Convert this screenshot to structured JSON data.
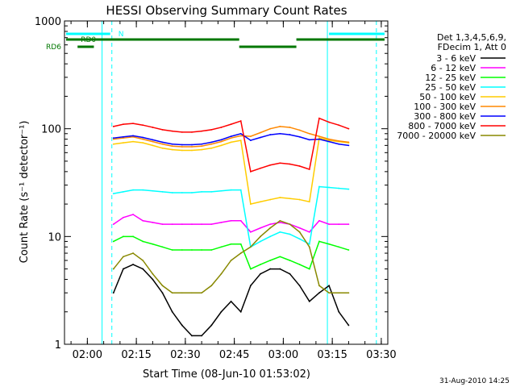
{
  "chart_data": {
    "type": "line",
    "title": "HESSI Observing Summary Count Rates",
    "xlabel": "Start Time (08-Jun-10 01:53:02)",
    "ylabel": "Count Rate (s⁻¹ detector⁻¹)",
    "y_scale": "log",
    "ylim": [
      1,
      1000
    ],
    "x_unit": "minutes since 01:53:02",
    "xlim": [
      0,
      99
    ],
    "x_ticks": [
      {
        "v": 7,
        "label": "02:00"
      },
      {
        "v": 22,
        "label": "02:15"
      },
      {
        "v": 37,
        "label": "02:30"
      },
      {
        "v": 52,
        "label": "02:45"
      },
      {
        "v": 67,
        "label": "03:00"
      },
      {
        "v": 82,
        "label": "03:15"
      },
      {
        "v": 97,
        "label": "03:30"
      }
    ],
    "y_ticks": [
      {
        "v": 1,
        "label": "1"
      },
      {
        "v": 10,
        "label": "10"
      },
      {
        "v": 100,
        "label": "100"
      },
      {
        "v": 1000,
        "label": "1000"
      }
    ],
    "legend_header": [
      "Det 1,3,4,5,6,9,",
      "FDecim 1, Att 0"
    ],
    "legend_placement": "right",
    "series": [
      {
        "name": "3 - 6 keV",
        "color": "#000000",
        "x": [
          15,
          18,
          21,
          24,
          27,
          30,
          33,
          36,
          39,
          42,
          45,
          48,
          51,
          54,
          57,
          60,
          63,
          66,
          69,
          72,
          75,
          78,
          81,
          84,
          87
        ],
        "values": [
          3,
          5,
          5.5,
          5,
          4,
          3,
          2,
          1.5,
          1.2,
          1.2,
          1.5,
          2,
          2.5,
          2,
          3.5,
          4.5,
          5,
          5,
          4.5,
          3.5,
          2.5,
          3,
          3.5,
          2,
          1.5
        ]
      },
      {
        "name": "6 - 12 keV",
        "color": "#ff00ff",
        "x": [
          15,
          18,
          21,
          24,
          27,
          30,
          33,
          36,
          39,
          42,
          45,
          48,
          51,
          54,
          57,
          60,
          63,
          66,
          69,
          72,
          75,
          78,
          81,
          84,
          87
        ],
        "values": [
          13,
          15,
          16,
          14,
          13.5,
          13,
          13,
          13,
          13,
          13,
          13,
          13.5,
          14,
          14,
          11,
          12,
          13,
          13.5,
          13,
          12,
          11,
          14,
          13,
          13,
          13
        ]
      },
      {
        "name": "12 - 25 keV",
        "color": "#00ff00",
        "x": [
          15,
          18,
          21,
          24,
          27,
          30,
          33,
          36,
          39,
          42,
          45,
          48,
          51,
          54,
          57,
          60,
          63,
          66,
          69,
          72,
          75,
          78,
          81,
          84,
          87
        ],
        "values": [
          9,
          10,
          10,
          9,
          8.5,
          8,
          7.5,
          7.5,
          7.5,
          7.5,
          7.5,
          8,
          8.5,
          8.5,
          5,
          5.5,
          6,
          6.5,
          6,
          5.5,
          5,
          9,
          8.5,
          8,
          7.5
        ]
      },
      {
        "name": "25 - 50 keV",
        "color": "#00ffff",
        "x": [
          15,
          18,
          21,
          24,
          27,
          30,
          33,
          36,
          39,
          42,
          45,
          48,
          51,
          54,
          57,
          60,
          63,
          66,
          69,
          72,
          75,
          78,
          81,
          84,
          87
        ],
        "values": [
          25,
          26,
          27,
          27,
          26.5,
          26,
          25.5,
          25.5,
          25.5,
          26,
          26,
          26.5,
          27,
          27,
          8,
          9,
          10,
          11,
          10.5,
          9.5,
          8.5,
          29,
          28.5,
          28,
          27.5
        ]
      },
      {
        "name": "50 - 100 keV",
        "color": "#ffcc00",
        "x": [
          15,
          18,
          21,
          24,
          27,
          30,
          33,
          36,
          39,
          42,
          45,
          48,
          51,
          54,
          57,
          60,
          63,
          66,
          69,
          72,
          75,
          78,
          81,
          84,
          87
        ],
        "values": [
          72,
          74,
          76,
          74,
          70,
          66,
          64,
          63,
          63,
          64,
          66,
          70,
          75,
          78,
          20,
          21,
          22,
          23,
          22.5,
          22,
          21,
          82,
          78,
          76,
          74
        ]
      },
      {
        "name": "100 - 300 keV",
        "color": "#ff8800",
        "x": [
          15,
          18,
          21,
          24,
          27,
          30,
          33,
          36,
          39,
          42,
          45,
          48,
          51,
          54,
          57,
          60,
          63,
          66,
          69,
          72,
          75,
          78,
          81,
          84,
          87
        ],
        "values": [
          80,
          82,
          84,
          80,
          76,
          72,
          69,
          68,
          68,
          69,
          72,
          76,
          82,
          86,
          85,
          92,
          100,
          105,
          103,
          97,
          90,
          85,
          80,
          77,
          75
        ]
      },
      {
        "name": "300 - 800 keV",
        "color": "#0000ff",
        "x": [
          15,
          18,
          21,
          24,
          27,
          30,
          33,
          36,
          39,
          42,
          45,
          48,
          51,
          54,
          57,
          60,
          63,
          66,
          69,
          72,
          75,
          78,
          81,
          84,
          87
        ],
        "values": [
          82,
          84,
          86,
          83,
          79,
          75,
          72,
          71,
          71,
          72,
          75,
          79,
          85,
          90,
          78,
          83,
          88,
          90,
          88,
          84,
          79,
          80,
          76,
          72,
          70
        ]
      },
      {
        "name": "800 - 7000 keV",
        "color": "#ff0000",
        "x": [
          15,
          18,
          21,
          24,
          27,
          30,
          33,
          36,
          39,
          42,
          45,
          48,
          51,
          54,
          57,
          60,
          63,
          66,
          69,
          72,
          75,
          78,
          81,
          84,
          87
        ],
        "values": [
          105,
          110,
          112,
          108,
          103,
          98,
          95,
          93,
          93,
          95,
          98,
          103,
          110,
          118,
          40,
          43,
          46,
          48,
          47,
          45,
          42,
          125,
          115,
          108,
          100
        ]
      },
      {
        "name": "7000 - 20000 keV",
        "color": "#888800",
        "x": [
          15,
          18,
          21,
          24,
          27,
          30,
          33,
          36,
          39,
          42,
          45,
          48,
          51,
          54,
          57,
          60,
          63,
          66,
          69,
          72,
          75,
          78,
          81,
          84,
          87
        ],
        "values": [
          5,
          6.5,
          7,
          6,
          4.5,
          3.5,
          3,
          3,
          3,
          3,
          3.5,
          4.5,
          6,
          7,
          8,
          10,
          12,
          14,
          13,
          11,
          8,
          3.5,
          3,
          3,
          3
        ]
      }
    ],
    "annotations": {
      "bars": [
        {
          "label": "N",
          "color": "#00ffff",
          "segments": [
            [
              0.5,
              14
            ],
            [
              81,
              98
            ]
          ]
        },
        {
          "label": "RD0",
          "color": "#007700",
          "segments": [
            [
              0.5,
              53.5
            ],
            [
              71,
              98
            ]
          ]
        },
        {
          "label": "RD6",
          "color": "#007700",
          "segments": [
            [
              4,
              9
            ],
            [
              53.5,
              71
            ]
          ]
        }
      ],
      "vlines_solid": [
        11.5,
        80.5
      ],
      "vlines_dashed": [
        14.5,
        95.5
      ],
      "vlines_solid_color": "#00ffff"
    },
    "timestamp": "31-Aug-2010 14:25"
  }
}
